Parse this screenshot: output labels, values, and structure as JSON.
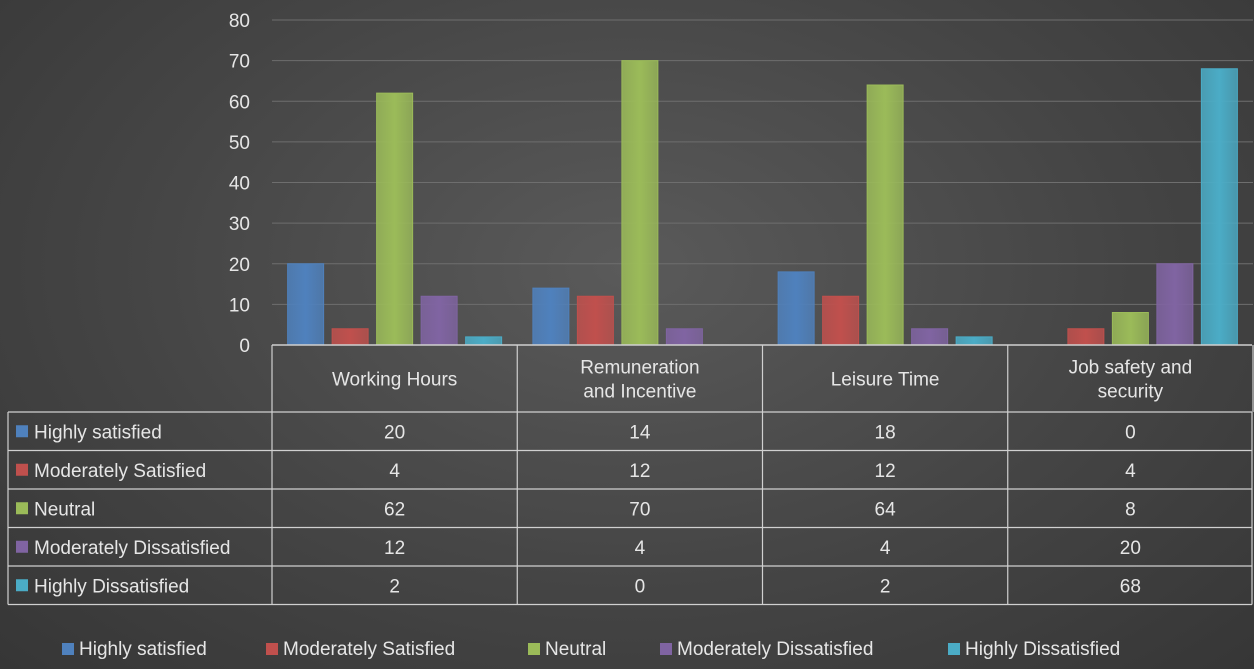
{
  "chart_data": {
    "type": "bar",
    "title": "",
    "xlabel": "",
    "ylabel": "",
    "ylim": [
      0,
      80
    ],
    "yticks": [
      0,
      10,
      20,
      30,
      40,
      50,
      60,
      70,
      80
    ],
    "grid": true,
    "legend": "bottom",
    "data_table": true,
    "categories": [
      [
        "Working Hours"
      ],
      [
        "Remuneration",
        "and Incentive"
      ],
      [
        "Leisure Time"
      ],
      [
        "Job safety and",
        "security"
      ]
    ],
    "series": [
      {
        "name": "Highly satisfied",
        "color": "#4f81bd",
        "values": [
          20,
          14,
          18,
          0
        ]
      },
      {
        "name": "Moderately Satisfied",
        "color": "#c0504d",
        "values": [
          4,
          12,
          12,
          4
        ]
      },
      {
        "name": "Neutral",
        "color": "#9bbb59",
        "values": [
          62,
          70,
          64,
          8
        ]
      },
      {
        "name": "Moderately Dissatisfied",
        "color": "#8064a2",
        "values": [
          12,
          4,
          4,
          20
        ]
      },
      {
        "name": "Highly Dissatisfied",
        "color": "#4bacc6",
        "values": [
          2,
          0,
          2,
          68
        ]
      }
    ]
  }
}
